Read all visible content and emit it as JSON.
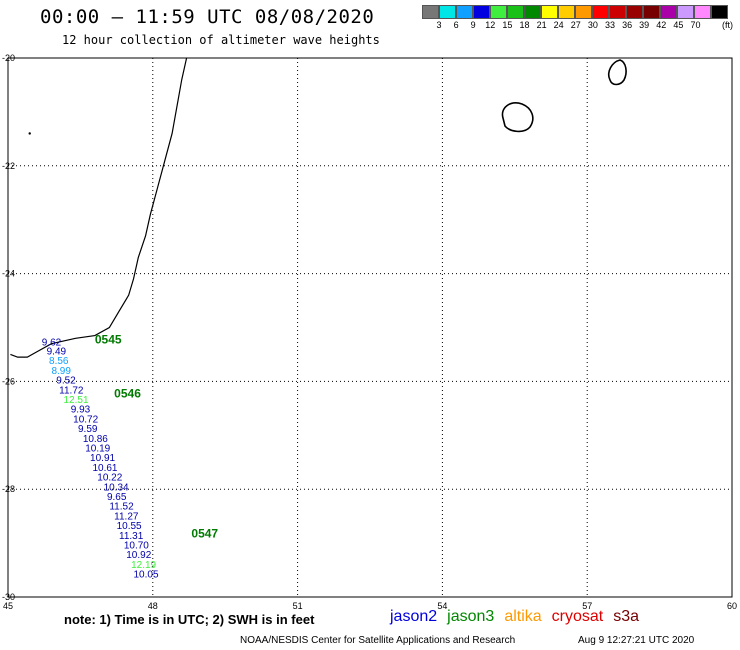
{
  "header": {
    "title": "00:00 – 11:59 UTC 08/08/2020",
    "subtitle": "12 hour collection of altimeter wave heights"
  },
  "scale": {
    "colors": [
      "#777777",
      "#00e5e5",
      "#10a0ff",
      "#0000e0",
      "#40ee40",
      "#18c018",
      "#008800",
      "#ffff00",
      "#ffcc00",
      "#ff9900",
      "#ff0000",
      "#cc0000",
      "#990000",
      "#770000",
      "#aa00aa",
      "#cc99ff",
      "#ff88ff",
      "#000000"
    ],
    "ticks": [
      "3",
      "6",
      "9",
      "12",
      "15",
      "18",
      "21",
      "24",
      "27",
      "30",
      "33",
      "36",
      "39",
      "42",
      "45",
      "70"
    ],
    "unit": "(ft)"
  },
  "axes": {
    "lat_labels": [
      "-20",
      "-22",
      "-24",
      "-26",
      "-28",
      "-30"
    ],
    "lon_labels": [
      "45",
      "48",
      "51",
      "54",
      "57",
      "60"
    ]
  },
  "observations": [
    {
      "value": "9.62",
      "lat": -25.33,
      "lon": 45.7,
      "color": "#0000aa"
    },
    {
      "value": "9.49",
      "lat": -25.5,
      "lon": 45.8,
      "color": "#0000aa"
    },
    {
      "value": "8.56",
      "lat": -25.68,
      "lon": 45.85,
      "color": "#10a0ff"
    },
    {
      "value": "8.99",
      "lat": -25.86,
      "lon": 45.9,
      "color": "#10a0ff"
    },
    {
      "value": "9.52",
      "lat": -26.04,
      "lon": 46.0,
      "color": "#0000aa"
    },
    {
      "value": "11.72",
      "lat": -26.22,
      "lon": 46.06,
      "color": "#0000aa"
    },
    {
      "value": "12.51",
      "lat": -26.4,
      "lon": 46.15,
      "color": "#40ee40"
    },
    {
      "value": "9.93",
      "lat": -26.58,
      "lon": 46.3,
      "color": "#0000aa"
    },
    {
      "value": "10.72",
      "lat": -26.76,
      "lon": 46.35,
      "color": "#0000aa"
    },
    {
      "value": "9.59",
      "lat": -26.94,
      "lon": 46.45,
      "color": "#0000aa"
    },
    {
      "value": "10.86",
      "lat": -27.12,
      "lon": 46.55,
      "color": "#0000aa"
    },
    {
      "value": "10.19",
      "lat": -27.3,
      "lon": 46.6,
      "color": "#0000aa"
    },
    {
      "value": "10.91",
      "lat": -27.48,
      "lon": 46.7,
      "color": "#0000aa"
    },
    {
      "value": "10.61",
      "lat": -27.66,
      "lon": 46.75,
      "color": "#0000aa"
    },
    {
      "value": "10.22",
      "lat": -27.84,
      "lon": 46.85,
      "color": "#0000aa"
    },
    {
      "value": "10.34",
      "lat": -28.02,
      "lon": 46.98,
      "color": "#0000aa"
    },
    {
      "value": "9.65",
      "lat": -28.2,
      "lon": 47.05,
      "color": "#0000aa"
    },
    {
      "value": "11.52",
      "lat": -28.38,
      "lon": 47.1,
      "color": "#0000aa"
    },
    {
      "value": "11.27",
      "lat": -28.56,
      "lon": 47.2,
      "color": "#0000aa"
    },
    {
      "value": "10.55",
      "lat": -28.74,
      "lon": 47.25,
      "color": "#0000aa"
    },
    {
      "value": "11.31",
      "lat": -28.92,
      "lon": 47.3,
      "color": "#0000aa"
    },
    {
      "value": "10.70",
      "lat": -29.1,
      "lon": 47.4,
      "color": "#0000aa"
    },
    {
      "value": "10.92",
      "lat": -29.28,
      "lon": 47.45,
      "color": "#0000aa"
    },
    {
      "value": "12.19",
      "lat": -29.46,
      "lon": 47.55,
      "color": "#40ee40"
    },
    {
      "value": "10.05",
      "lat": -29.64,
      "lon": 47.6,
      "color": "#0000aa"
    }
  ],
  "pass_labels": [
    {
      "text": "0545",
      "lat": -25.3,
      "lon": 46.8
    },
    {
      "text": "0546",
      "lat": -26.3,
      "lon": 47.2
    },
    {
      "text": "0547",
      "lat": -28.9,
      "lon": 48.8
    }
  ],
  "footer": {
    "note": "note: 1) Time is in UTC; 2) SWH is in feet",
    "satellites": [
      {
        "name": "jason2",
        "color": "#0000dd"
      },
      {
        "name": "jason3",
        "color": "#008800"
      },
      {
        "name": "altika",
        "color": "#ff9900"
      },
      {
        "name": "cryosat",
        "color": "#dd0000"
      },
      {
        "name": "s3a",
        "color": "#770000"
      }
    ],
    "credit": "NOAA/NESDIS Center for Satellite Applications and Research",
    "timestamp": "Aug  9 12:27:21 UTC 2020"
  }
}
